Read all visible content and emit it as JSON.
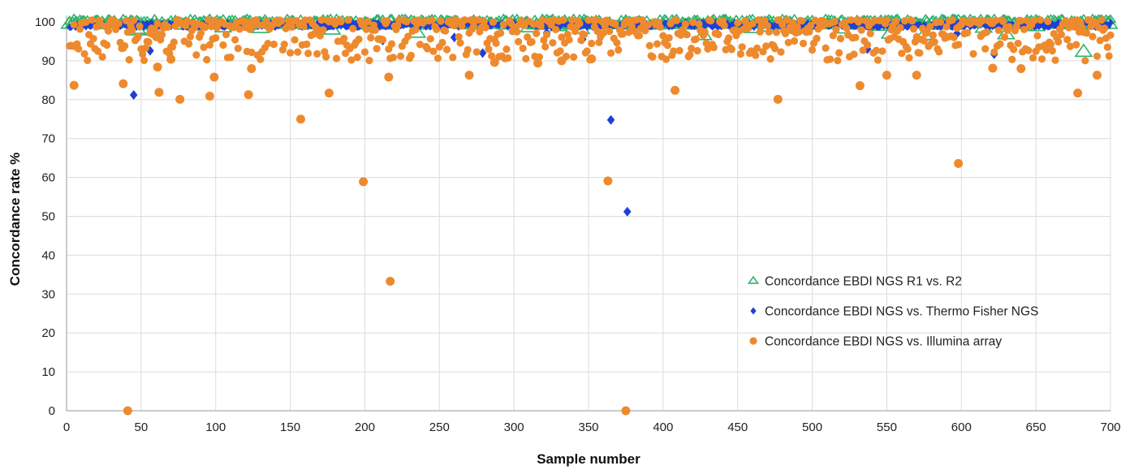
{
  "chart_data": {
    "type": "scatter",
    "title": "",
    "xlabel": "Sample number",
    "ylabel": "Concordance rate %",
    "xlim": [
      0,
      700
    ],
    "ylim": [
      0,
      100
    ],
    "x_ticks": [
      0,
      50,
      100,
      150,
      200,
      250,
      300,
      350,
      400,
      450,
      500,
      550,
      600,
      650,
      700
    ],
    "y_ticks": [
      0,
      10,
      20,
      30,
      40,
      50,
      60,
      70,
      80,
      90,
      100
    ],
    "grid": true,
    "legend_position": "lower-right",
    "series": [
      {
        "name": "Concordance EBDI NGS R1 vs. R2",
        "marker": "triangle-open",
        "color": "#2db36b",
        "points": [
          [
            2,
            99.5
          ],
          [
            48,
            97.8
          ],
          [
            50,
            98.2
          ],
          [
            105,
            98.6
          ],
          [
            130,
            98.4
          ],
          [
            178,
            98.0
          ],
          [
            235,
            97.2
          ],
          [
            310,
            98.6
          ],
          [
            330,
            98.9
          ],
          [
            345,
            98.2
          ],
          [
            375,
            99.6
          ],
          [
            427,
            96.6
          ],
          [
            460,
            98.4
          ],
          [
            470,
            98.8
          ],
          [
            520,
            98.3
          ],
          [
            545,
            99.0
          ],
          [
            552,
            97.0
          ],
          [
            575,
            96.6
          ],
          [
            615,
            98.5
          ],
          [
            630,
            96.8
          ],
          [
            650,
            98.9
          ],
          [
            682,
            92.3
          ],
          [
            699,
            99.5
          ]
        ],
        "band_x": [
          2,
          700
        ],
        "band_y": [
          98.8,
          100.8
        ]
      },
      {
        "name": "Concordance EBDI NGS vs. Thermo Fisher NGS",
        "marker": "diamond",
        "color": "#1f3fd9",
        "points": [
          [
            45,
            81.2
          ],
          [
            56,
            92.6
          ],
          [
            212,
            95.2
          ],
          [
            260,
            96.0
          ],
          [
            279,
            92.0
          ],
          [
            322,
            97.2
          ],
          [
            346,
            95.5
          ],
          [
            365,
            74.8
          ],
          [
            376,
            51.2
          ],
          [
            537,
            93.0
          ],
          [
            570,
            96.0
          ],
          [
            597,
            97.0
          ],
          [
            622,
            91.7
          ]
        ],
        "band_x": [
          2,
          700
        ],
        "band_y": [
          98.6,
          99.9
        ]
      },
      {
        "name": "Concordance EBDI NGS vs. Illumina array",
        "marker": "circle",
        "color": "#ee8a2e",
        "points": [
          [
            5,
            83.7
          ],
          [
            38,
            84.1
          ],
          [
            41,
            0
          ],
          [
            61,
            88.4
          ],
          [
            62,
            81.9
          ],
          [
            70,
            90.4
          ],
          [
            76,
            80.1
          ],
          [
            96,
            80.9
          ],
          [
            99,
            85.8
          ],
          [
            122,
            81.3
          ],
          [
            124,
            88.0
          ],
          [
            157,
            75.0
          ],
          [
            176,
            81.7
          ],
          [
            199,
            58.9
          ],
          [
            216,
            85.8
          ],
          [
            217,
            33.3
          ],
          [
            270,
            86.3
          ],
          [
            287,
            89.6
          ],
          [
            316,
            89.4
          ],
          [
            332,
            90.0
          ],
          [
            352,
            90.5
          ],
          [
            363,
            59.1
          ],
          [
            375,
            0
          ],
          [
            408,
            82.4
          ],
          [
            477,
            80.1
          ],
          [
            532,
            83.6
          ],
          [
            550,
            86.3
          ],
          [
            570,
            86.3
          ],
          [
            598,
            63.6
          ],
          [
            621,
            88.1
          ],
          [
            640,
            88.0
          ],
          [
            678,
            81.7
          ],
          [
            691,
            86.3
          ]
        ],
        "cloud_x": [
          2,
          700
        ],
        "cloud_y": [
          90,
          100.5
        ]
      }
    ]
  }
}
